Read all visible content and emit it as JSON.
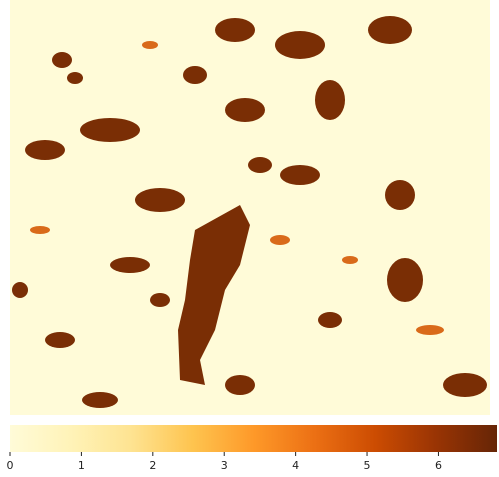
{
  "chart_data": {
    "type": "heatmap",
    "colorbar": {
      "clim": [
        0,
        6.82
      ],
      "ticks": [
        0,
        1,
        2,
        3,
        4,
        5,
        6
      ],
      "colors": [
        "#fffbd8",
        "#fff3b8",
        "#fee391",
        "#fec44f",
        "#fe9929",
        "#ec7014",
        "#cc4c02",
        "#993404",
        "#662506"
      ]
    }
  }
}
